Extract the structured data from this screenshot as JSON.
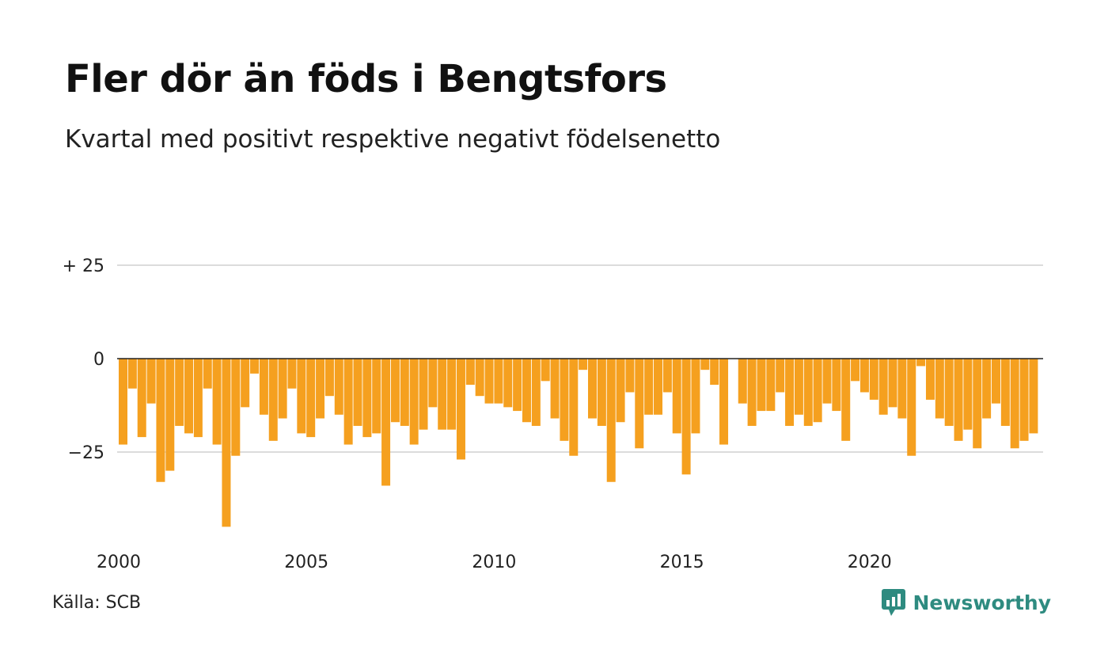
{
  "title": "Fler dör än föds i Bengtsfors",
  "subtitle": "Kvartal med positivt respektive negativt födelsenetto",
  "source": "Källa: SCB",
  "brand": "Newsworthy",
  "colors": {
    "bar": "#f5a01f",
    "grid": "#dcdcdc",
    "zero": "#222222",
    "brand": "#2e8b80"
  },
  "chart_data": {
    "type": "bar",
    "x_start": 2000,
    "periods_per_year": 4,
    "ylim": [
      -45,
      40
    ],
    "grid": true,
    "y_ticks": [
      {
        "value": 25,
        "label": "+ 25"
      },
      {
        "value": 0,
        "label": "0"
      },
      {
        "value": -25,
        "label": "−25"
      }
    ],
    "x_ticks": [
      {
        "value": 2000,
        "label": "2000"
      },
      {
        "value": 2005,
        "label": "2005"
      },
      {
        "value": 2010,
        "label": "2010"
      },
      {
        "value": 2015,
        "label": "2015"
      },
      {
        "value": 2020,
        "label": "2020"
      }
    ],
    "values": [
      -23,
      -8,
      -21,
      -12,
      -33,
      -30,
      -18,
      -20,
      -21,
      -8,
      -23,
      -45,
      -26,
      -13,
      -4,
      -15,
      -22,
      -16,
      -8,
      -20,
      -21,
      -16,
      -10,
      -15,
      -23,
      -18,
      -21,
      -20,
      -34,
      -17,
      -18,
      -23,
      -19,
      -13,
      -19,
      -19,
      -27,
      -7,
      -10,
      -12,
      -12,
      -13,
      -14,
      -17,
      -18,
      -6,
      -16,
      -22,
      -26,
      -3,
      -16,
      -18,
      -33,
      -17,
      -9,
      -24,
      -15,
      -15,
      -9,
      -20,
      -31,
      -20,
      -3,
      -7,
      -23,
      0,
      -12,
      -18,
      -14,
      -14,
      -9,
      -18,
      -15,
      -18,
      -17,
      -12,
      -14,
      -22,
      -6,
      -9,
      -11,
      -15,
      -13,
      -16,
      -26,
      -2,
      -11,
      -16,
      -18,
      -22,
      -19,
      -24,
      -16,
      -12,
      -18,
      -24,
      -22,
      -20
    ]
  }
}
